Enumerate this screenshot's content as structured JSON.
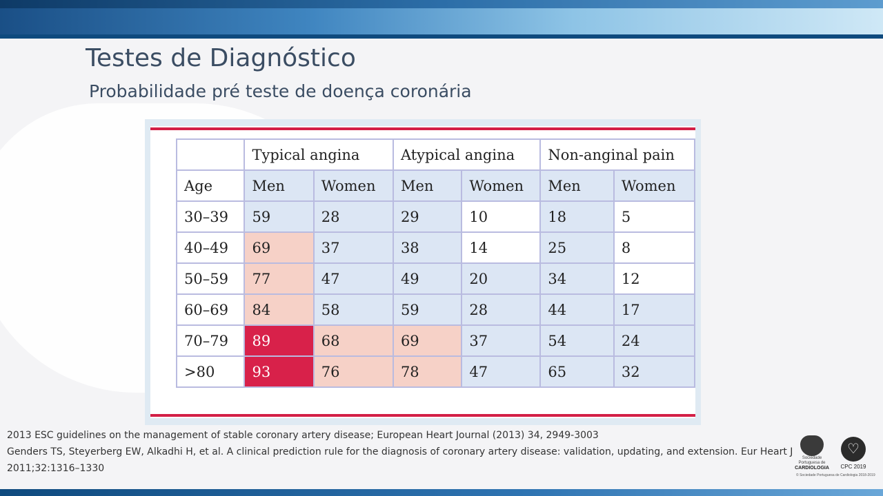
{
  "slide": {
    "title": "Testes de Diagnóstico",
    "subtitle": "Probabilidade pré teste de doença coronária"
  },
  "colors": {
    "white": "#ffffff",
    "light_blue": "#dce6f4",
    "light_salmon": "#f6d1c7",
    "red": "#d8214a",
    "border": "#b9bbe0",
    "accent_bar": "#d31f46"
  },
  "table": {
    "groups": [
      "Typical angina",
      "Atypical angina",
      "Non-anginal pain"
    ],
    "headers": [
      "Age",
      "Men",
      "Women",
      "Men",
      "Women",
      "Men",
      "Women"
    ],
    "rows": [
      {
        "age": "30–39",
        "cells": [
          {
            "v": "59",
            "c": "b"
          },
          {
            "v": "28",
            "c": "b"
          },
          {
            "v": "29",
            "c": "b"
          },
          {
            "v": "10",
            "c": "w"
          },
          {
            "v": "18",
            "c": "b"
          },
          {
            "v": "5",
            "c": "w"
          }
        ]
      },
      {
        "age": "40–49",
        "cells": [
          {
            "v": "69",
            "c": "p"
          },
          {
            "v": "37",
            "c": "b"
          },
          {
            "v": "38",
            "c": "b"
          },
          {
            "v": "14",
            "c": "w"
          },
          {
            "v": "25",
            "c": "b"
          },
          {
            "v": "8",
            "c": "w"
          }
        ]
      },
      {
        "age": "50–59",
        "cells": [
          {
            "v": "77",
            "c": "p"
          },
          {
            "v": "47",
            "c": "b"
          },
          {
            "v": "49",
            "c": "b"
          },
          {
            "v": "20",
            "c": "b"
          },
          {
            "v": "34",
            "c": "b"
          },
          {
            "v": "12",
            "c": "w"
          }
        ]
      },
      {
        "age": "60–69",
        "cells": [
          {
            "v": "84",
            "c": "p"
          },
          {
            "v": "58",
            "c": "b"
          },
          {
            "v": "59",
            "c": "b"
          },
          {
            "v": "28",
            "c": "b"
          },
          {
            "v": "44",
            "c": "b"
          },
          {
            "v": "17",
            "c": "b"
          }
        ]
      },
      {
        "age": "70–79",
        "cells": [
          {
            "v": "89",
            "c": "r"
          },
          {
            "v": "68",
            "c": "p"
          },
          {
            "v": "69",
            "c": "p"
          },
          {
            "v": "37",
            "c": "b"
          },
          {
            "v": "54",
            "c": "b"
          },
          {
            "v": "24",
            "c": "b"
          }
        ]
      },
      {
        "age": ">80",
        "cells": [
          {
            "v": "93",
            "c": "r"
          },
          {
            "v": "76",
            "c": "p"
          },
          {
            "v": "78",
            "c": "p"
          },
          {
            "v": "47",
            "c": "b"
          },
          {
            "v": "65",
            "c": "b"
          },
          {
            "v": "32",
            "c": "b"
          }
        ]
      }
    ]
  },
  "references": [
    "2013 ESC guidelines on the management of stable coronary artery disease; European Heart Journal  (2013) 34, 2949-3003",
    "Genders TS, Steyerberg EW, Alkadhi H, et al. A clinical prediction rule for the diagnosis of coronary artery disease: validation, updating, and extension. Eur Heart J 2011;32:1316–1330"
  ],
  "logos": {
    "spc_small": "Sociedade Portuguesa de",
    "spc_name": "CARDIOLOGIA",
    "cpc": "CPC 2019",
    "footer_note": "© Sociedade Portuguesa de Cardiologia 2018-2019"
  }
}
